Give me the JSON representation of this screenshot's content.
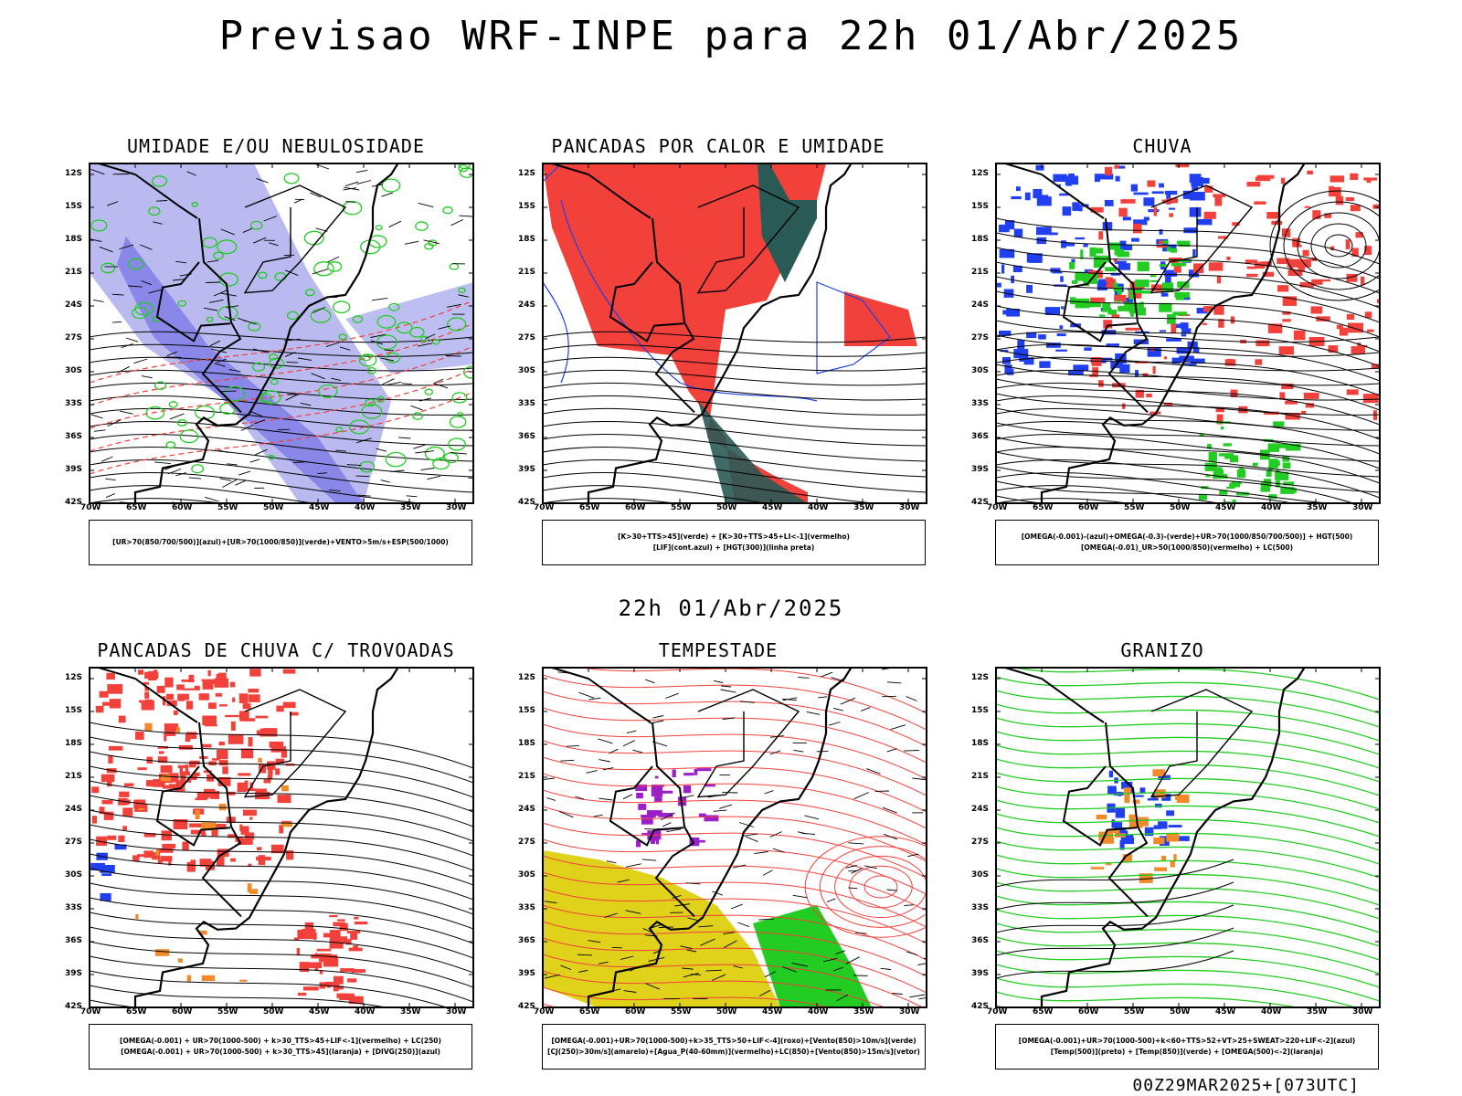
{
  "header": {
    "title": "Previsao WRF-INPE  para 22h 01/Abr/2025"
  },
  "middle_time": "22h 01/Abr/2025",
  "footer": "00Z29MAR2025+[073UTC]",
  "axes": {
    "y_ticks": [
      "12S",
      "15S",
      "18S",
      "21S",
      "24S",
      "27S",
      "30S",
      "33S",
      "36S",
      "39S",
      "42S"
    ],
    "x_ticks": [
      "70W",
      "65W",
      "60W",
      "55W",
      "50W",
      "45W",
      "40W",
      "35W",
      "30W"
    ]
  },
  "colors": {
    "red": "#f2403a",
    "blue": "#1f3ff0",
    "green": "#22cc22",
    "lavender": "#b2b3f0",
    "darkteal": "#2a5a55",
    "yellow": "#e0d21a",
    "purple": "#9a1fc8",
    "orange": "#f08a2a"
  },
  "panels": [
    {
      "id": "umidade",
      "title": "UMIDADE E/OU NEBULOSIDADE",
      "legend": [
        "[UR>70(850/700/500)](azul)+[UR>70(1000/850)](verde)+VENTO>5m/s+ESP(500/1000)"
      ]
    },
    {
      "id": "pancadas-calor",
      "title": "PANCADAS POR CALOR E UMIDADE",
      "legend": [
        "[K>30+TTS>45](verde) + [K>30+TTS>45+LI<-1](vermelho)",
        "[LIF](cont.azul) + [HGT(300)](linha preta)"
      ]
    },
    {
      "id": "chuva",
      "title": "CHUVA",
      "legend": [
        "[OMEGA(-0.001)-(azul)+OMEGA(-0.3)-(verde)+UR>70(1000/850/700/500)] + HGT(500)",
        "[OMEGA(-0.01)_UR>50(1000/850)(vermelho) + LC(500)"
      ]
    },
    {
      "id": "trovoadas",
      "title": "PANCADAS DE CHUVA C/ TROVOADAS",
      "legend": [
        "[OMEGA(-0.001) + UR>70(1000-500) + k>30_TTS>45+LIF<-1](vermelho) + LC(250)",
        "[OMEGA(-0.001) + UR>70(1000-500) + k>30_TTS>45](laranja) + [DIVG(250)](azul)"
      ]
    },
    {
      "id": "tempestade",
      "title": "TEMPESTADE",
      "legend": [
        "[OMEGA(-0.001)+UR>70(1000-500)+k>35_TTS>50+LIF<-4](roxo)+[Vento(850)>10m/s](verde)",
        "[CJ(250)>30m/s](amarelo)+[Agua_P(40-60mm)](vermelho)+LC(850)+[Vento(850)>15m/s](vetor)"
      ]
    },
    {
      "id": "granizo",
      "title": "GRANIZO",
      "legend": [
        "[OMEGA(-0.001)+UR>70(1000-500)+k<60+TTS>52+VT>25+SWEAT>220+LIF<-2](azul)",
        "[Temp(500)](preto) + [Temp(850)](verde) + [OMEGA(500)<-2](laranja)"
      ]
    }
  ]
}
